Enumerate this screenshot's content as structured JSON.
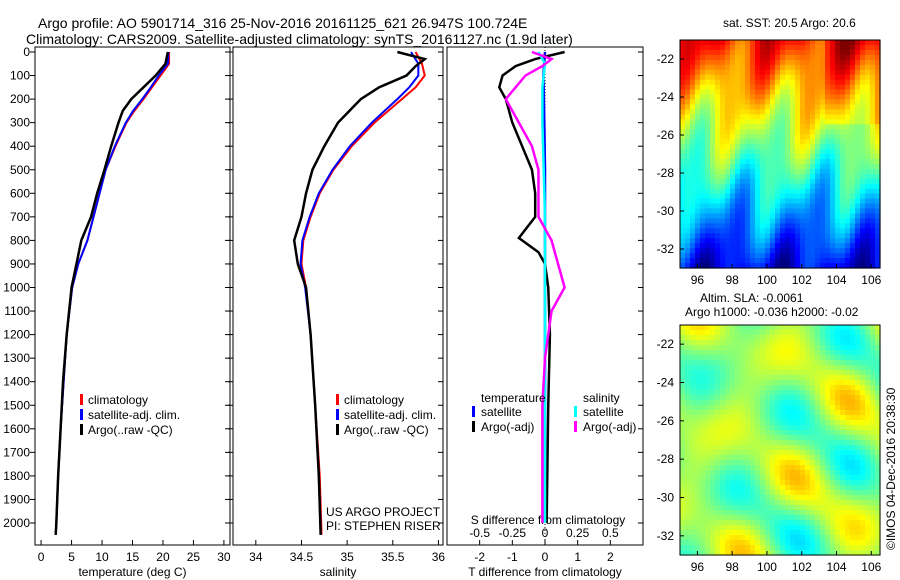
{
  "title": {
    "line1": "Argo profile: AO 5901714_316 25-Nov-2016 20161125_621 26.947S 100.724E",
    "line2": "Climatology: CARS2009. Satellite-adjusted climatology: synTS_20161127.nc (1.9d later)"
  },
  "colors": {
    "climatology": "#ff0000",
    "satellite": "#0000ff",
    "argo": "#000000",
    "sal_sat": "#00ffff",
    "sal_argo": "#ff00ff"
  },
  "chart_data": [
    {
      "type": "line",
      "xlabel": "temperature (deg C)",
      "ylabel": "",
      "xlim": [
        -1,
        31
      ],
      "ylim": [
        2050,
        0
      ],
      "xticks": [
        "0",
        "5",
        "10",
        "15",
        "20",
        "25",
        "30"
      ],
      "yticks": [
        "0",
        "100",
        "200",
        "300",
        "400",
        "500",
        "600",
        "700",
        "800",
        "900",
        "1000",
        "1100",
        "1200",
        "1300",
        "1400",
        "1500",
        "1600",
        "1700",
        "1800",
        "1900",
        "2000"
      ],
      "legend": [
        "climatology",
        "satellite-adj. clim.",
        "Argo(..raw -QC)"
      ],
      "series": [
        {
          "name": "climatology",
          "depth": [
            0,
            50,
            100,
            150,
            200,
            250,
            300,
            400,
            500,
            600,
            700,
            800,
            900,
            1000,
            1200,
            1400,
            1600,
            1800,
            2000,
            2050
          ],
          "values": [
            21,
            21,
            19.6,
            18.2,
            16.8,
            15.3,
            14,
            12.2,
            10.6,
            9.6,
            8.6,
            7.6,
            6.1,
            5.1,
            4.2,
            3.7,
            3.2,
            2.8,
            2.5,
            2.4
          ]
        },
        {
          "name": "satellite-adj. clim.",
          "depth": [
            0,
            50,
            100,
            150,
            200,
            250,
            300,
            400,
            500,
            600,
            700,
            800,
            900,
            1000,
            1200,
            1400,
            1600,
            1800,
            2000,
            2050
          ],
          "values": [
            20.9,
            20.8,
            19.3,
            18,
            16.6,
            15.1,
            13.9,
            12.1,
            10.6,
            9.6,
            8.6,
            7.6,
            6.1,
            5.1,
            4.2,
            3.7,
            3.2,
            2.8,
            2.5,
            2.4
          ]
        },
        {
          "name": "Argo(..raw -QC)",
          "depth": [
            0,
            50,
            100,
            150,
            200,
            250,
            300,
            400,
            500,
            600,
            700,
            800,
            900,
            1000,
            1200,
            1400,
            1600,
            1800,
            2000,
            2050
          ],
          "values": [
            20.8,
            20.4,
            18.8,
            16.8,
            14.8,
            13.4,
            12.7,
            11.5,
            10.4,
            9.2,
            8.2,
            6.6,
            5.8,
            5,
            4.2,
            3.6,
            3.2,
            2.8,
            2.5,
            2.4
          ]
        }
      ]
    },
    {
      "type": "line",
      "xlabel": "salinity",
      "xlim": [
        33.75,
        36.05
      ],
      "ylim": [
        2050,
        0
      ],
      "xticks": [
        "34",
        "34.5",
        "35",
        "35.5",
        "36"
      ],
      "legend": [
        "climatology",
        "satellite-adj. clim.",
        "Argo(..raw -QC)"
      ],
      "annotation": [
        "US ARGO PROJECT",
        "PI: STEPHEN RISER"
      ],
      "series": [
        {
          "name": "climatology",
          "depth": [
            0,
            50,
            100,
            150,
            200,
            300,
            400,
            500,
            600,
            700,
            800,
            900,
            1000,
            1200,
            1500,
            1800,
            2050
          ],
          "values": [
            35.75,
            35.82,
            35.85,
            35.75,
            35.6,
            35.3,
            35.05,
            34.85,
            34.7,
            34.6,
            34.52,
            34.5,
            34.55,
            34.6,
            34.65,
            34.7,
            34.72
          ]
        },
        {
          "name": "satellite-adj. clim.",
          "depth": [
            0,
            50,
            100,
            150,
            200,
            300,
            400,
            500,
            600,
            700,
            800,
            900,
            1000,
            1200,
            1500,
            1800,
            2050
          ],
          "values": [
            35.7,
            35.78,
            35.78,
            35.68,
            35.55,
            35.27,
            35.03,
            34.84,
            34.69,
            34.59,
            34.51,
            34.49,
            34.54,
            34.6,
            34.65,
            34.69,
            34.71
          ]
        },
        {
          "name": "Argo(..raw -QC)",
          "depth": [
            0,
            30,
            60,
            100,
            150,
            200,
            300,
            400,
            500,
            600,
            700,
            800,
            900,
            1000,
            1200,
            1500,
            1800,
            2050
          ],
          "values": [
            35.55,
            35.85,
            35.75,
            35.65,
            35.35,
            35.15,
            34.9,
            34.75,
            34.62,
            34.55,
            34.5,
            34.42,
            34.46,
            34.55,
            34.6,
            34.65,
            34.69,
            34.71
          ]
        }
      ]
    },
    {
      "type": "line",
      "xlabel": "T difference from climatology",
      "x2label": "S difference from climatology",
      "xlim": [
        -3,
        3
      ],
      "ylim": [
        2050,
        0
      ],
      "xticks": [
        "-2",
        "-1",
        "0",
        "1",
        "2"
      ],
      "x2ticks": [
        "-0.5",
        "-0.25",
        "0",
        "0.25",
        "0.5"
      ],
      "legend_titles": [
        "temperature",
        "salinity"
      ],
      "legend": [
        "satellite",
        "Argo(-adj)",
        "satellite",
        "Argo(-adj)"
      ],
      "series": [
        {
          "name": "T satellite",
          "depth": [
            0,
            100,
            300,
            500,
            700,
            900,
            1100,
            1500,
            2000
          ],
          "values": [
            0,
            -0.05,
            -0.02,
            0,
            0,
            0,
            0,
            0,
            0
          ]
        },
        {
          "name": "T Argo(-adj)",
          "depth": [
            0,
            30,
            60,
            100,
            150,
            200,
            300,
            400,
            500,
            600,
            700,
            790,
            850,
            900,
            1000,
            1200,
            1500,
            2000
          ],
          "values": [
            0.6,
            -0.3,
            -0.9,
            -1.3,
            -1.4,
            -1.2,
            -1.0,
            -0.7,
            -0.4,
            -0.3,
            -0.3,
            -0.8,
            -0.2,
            0,
            0.1,
            0.15,
            0.1,
            0.05
          ]
        },
        {
          "name": "S satellite",
          "depth": [
            0,
            50,
            150,
            300,
            500,
            700,
            900,
            1100,
            1500,
            2000
          ],
          "values": [
            -0.05,
            0,
            -0.02,
            -0.02,
            -0.01,
            0,
            0,
            0,
            0,
            0
          ]
        },
        {
          "name": "S Argo(-adj)",
          "depth": [
            0,
            30,
            60,
            100,
            200,
            300,
            400,
            500,
            700,
            800,
            900,
            1000,
            1100,
            1300,
            1500,
            2000
          ],
          "values": [
            -0.1,
            0.05,
            -0.02,
            -0.15,
            -0.3,
            -0.2,
            -0.1,
            -0.05,
            -0.05,
            0.05,
            0.1,
            0.15,
            0.05,
            0,
            -0.02,
            -0.02
          ]
        }
      ]
    },
    {
      "type": "heatmap",
      "title": "sat. SST: 20.5 Argo: 20.6",
      "xticks": [
        "96",
        "98",
        "100",
        "102",
        "104",
        "106"
      ],
      "yticks": [
        "-22",
        "-24",
        "-26",
        "-28",
        "-30",
        "-32"
      ]
    },
    {
      "type": "heatmap",
      "title": [
        "Altim. SLA: -0.0061",
        "Argo h1000: -0.036 h2000: -0.02"
      ],
      "xticks": [
        "96",
        "98",
        "100",
        "102",
        "104",
        "106"
      ],
      "yticks": [
        "-22",
        "-24",
        "-26",
        "-28",
        "-30",
        "-32"
      ]
    }
  ],
  "footer": "©IMOS 04-Dec-2016 20:38:30"
}
